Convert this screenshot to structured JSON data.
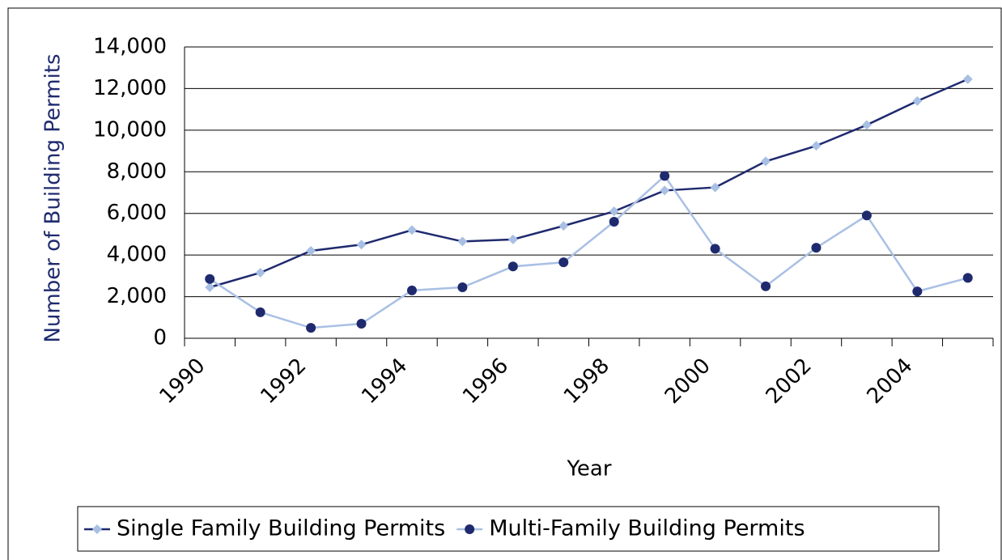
{
  "chart_data": {
    "type": "line",
    "y_label": "Number of Building Permits",
    "x_label": "Year",
    "categories": [
      "1990",
      null,
      "1992",
      null,
      "1994",
      null,
      "1996",
      null,
      "1998",
      null,
      "2000",
      null,
      "2002",
      null,
      "2004",
      null
    ],
    "series": [
      {
        "name": "Single Family Building Permits",
        "color": "#1f2a6e",
        "marker": "diamond",
        "marker_color": "#a9c0e4",
        "values": [
          2450,
          3150,
          4200,
          4500,
          5200,
          4650,
          4750,
          5400,
          6100,
          7100,
          7250,
          8500,
          9250,
          10250,
          11400,
          12450
        ]
      },
      {
        "name": "Multi-Family Building Permits",
        "color": "#a9c0e4",
        "marker": "circle",
        "marker_color": "#1f2a6e",
        "values": [
          2850,
          1250,
          500,
          700,
          2300,
          2450,
          3450,
          3650,
          5600,
          7800,
          4300,
          2500,
          4350,
          5900,
          2250,
          2900
        ]
      }
    ],
    "ylim": [
      0,
      14000
    ],
    "yticks": [
      0,
      {
        "value": 2000,
        "label": "2,000"
      },
      {
        "value": 4000,
        "label": "4,000"
      },
      {
        "value": 6000,
        "label": "6,000"
      },
      {
        "value": 8000,
        "label": "8,000"
      },
      {
        "value": 10000,
        "label": "10,000"
      },
      {
        "value": 12000,
        "label": "12,000"
      },
      {
        "value": 14000,
        "label": "14,000"
      }
    ],
    "grid": true,
    "legend": "bottom"
  }
}
